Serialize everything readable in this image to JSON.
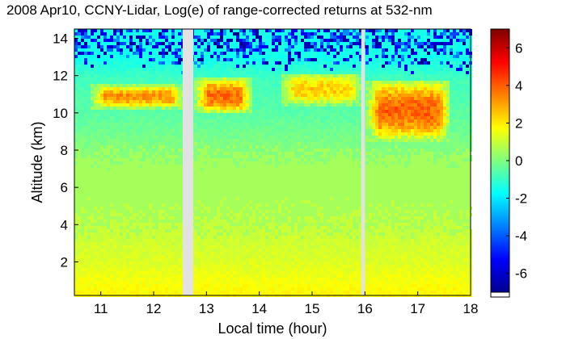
{
  "chart_data": {
    "type": "heatmap",
    "title": "2008 Apr10, CCNY-Lidar, Log(e) of range-corrected returns at 532-nm",
    "xlabel": "Local time (hour)",
    "ylabel": "Altitude (km)",
    "xlim": [
      10.5,
      18
    ],
    "ylim": [
      0.2,
      14.5
    ],
    "x_ticks": [
      "11",
      "12",
      "13",
      "14",
      "15",
      "16",
      "17",
      "18"
    ],
    "y_ticks": [
      "2",
      "4",
      "6",
      "8",
      "10",
      "12",
      "14"
    ],
    "colorbar": {
      "range": [
        -7,
        7
      ],
      "ticks": [
        "6",
        "4",
        "2",
        "0",
        "-2",
        "-4",
        "-6"
      ],
      "colormap": "jet"
    },
    "data_gaps_hours": [
      [
        12.55,
        12.75
      ],
      [
        15.93,
        16.0
      ]
    ],
    "missing_color": "#e2e2e2",
    "profile_description_levels": [
      {
        "altitude_km": 0.5,
        "value": 1.8
      },
      {
        "altitude_km": 2.0,
        "value": 1.3
      },
      {
        "altitude_km": 4.0,
        "value": 0.9
      },
      {
        "altitude_km": 6.0,
        "value": 0.6
      },
      {
        "altitude_km": 8.0,
        "value": 0.1
      },
      {
        "altitude_km": 10.0,
        "value": -0.5
      },
      {
        "altitude_km": 12.0,
        "value": -0.9
      },
      {
        "altitude_km": 13.0,
        "value": -1.5
      }
    ],
    "cirrus_layers": [
      {
        "start_h": 10.8,
        "end_h": 12.55,
        "base_km": 10.3,
        "top_km": 11.6,
        "peak": 3.2
      },
      {
        "start_h": 12.75,
        "end_h": 13.85,
        "base_km": 10.0,
        "top_km": 12.0,
        "peak": 3.8
      },
      {
        "start_h": 14.4,
        "end_h": 15.9,
        "base_km": 10.5,
        "top_km": 12.2,
        "peak": 2.4
      },
      {
        "start_h": 16.0,
        "end_h": 17.6,
        "base_km": 8.5,
        "top_km": 11.9,
        "peak": 3.9
      }
    ]
  }
}
